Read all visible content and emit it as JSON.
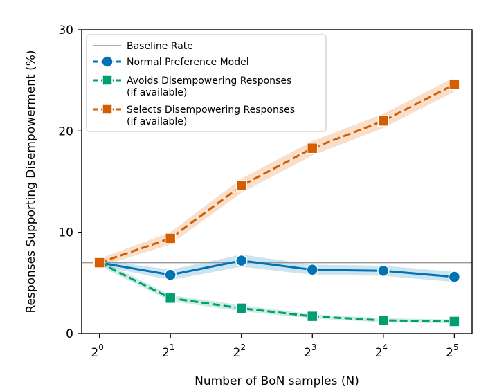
{
  "chart_data": {
    "type": "line",
    "title": "",
    "xlabel": "Number of BoN samples (N)",
    "ylabel": "Responses Supporting Disempowerment (%)",
    "x": [
      0,
      1,
      2,
      3,
      4,
      5
    ],
    "x_tick_labels": [
      {
        "base": "2",
        "exp": "0"
      },
      {
        "base": "2",
        "exp": "1"
      },
      {
        "base": "2",
        "exp": "2"
      },
      {
        "base": "2",
        "exp": "3"
      },
      {
        "base": "2",
        "exp": "4"
      },
      {
        "base": "2",
        "exp": "5"
      }
    ],
    "y_ticks": [
      0,
      10,
      20,
      30
    ],
    "y_tick_labels": [
      "0",
      "10",
      "20",
      "30"
    ],
    "xlim": [
      -0.25,
      5.25
    ],
    "ylim": [
      0,
      30
    ],
    "grid": false,
    "legend_position": "top-left",
    "baseline": {
      "name": "Baseline Rate",
      "value": 7.0,
      "color": "#999999"
    },
    "series": [
      {
        "name": "Normal Preference Model",
        "name_lines": [
          "Normal Preference Model"
        ],
        "color": "#0173b2",
        "marker": "circle",
        "dash": "dash",
        "values": [
          7.0,
          5.8,
          7.2,
          6.3,
          6.2,
          5.6
        ],
        "ci_low": [
          6.7,
          5.3,
          6.6,
          5.8,
          5.7,
          5.1
        ],
        "ci_high": [
          7.3,
          6.3,
          7.8,
          6.8,
          6.7,
          6.1
        ]
      },
      {
        "name": "Avoids Disempowering Responses (if available)",
        "name_lines": [
          "Avoids Disempowering Responses",
          "(if available)"
        ],
        "color": "#029e73",
        "marker": "square",
        "dash": "dash",
        "values": [
          7.0,
          3.5,
          2.5,
          1.7,
          1.3,
          1.2
        ],
        "ci_low": [
          6.7,
          3.2,
          2.2,
          1.5,
          1.1,
          1.0
        ],
        "ci_high": [
          7.3,
          3.8,
          2.8,
          1.9,
          1.5,
          1.4
        ]
      },
      {
        "name": "Selects Disempowering Responses (if available)",
        "name_lines": [
          "Selects Disempowering Responses",
          "(if available)"
        ],
        "color": "#d55e00",
        "marker": "square",
        "dash": "dash",
        "values": [
          7.0,
          9.4,
          14.6,
          18.3,
          21.0,
          24.6
        ],
        "ci_low": [
          6.6,
          8.8,
          13.9,
          17.6,
          20.3,
          23.9
        ],
        "ci_high": [
          7.4,
          10.0,
          15.3,
          19.0,
          21.7,
          25.3
        ]
      }
    ]
  }
}
